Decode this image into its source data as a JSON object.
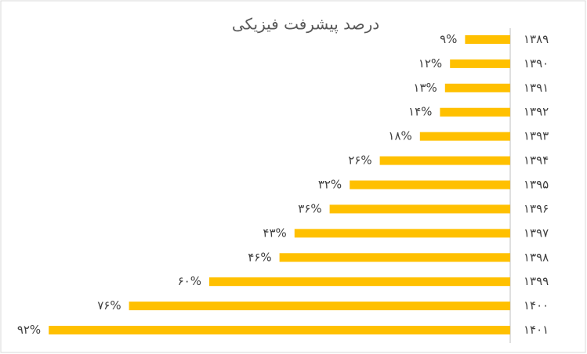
{
  "chart_data": {
    "type": "barh",
    "title": "درصد پیشرفت فیزیکی",
    "categories": [
      "۱۳۸۹",
      "۱۳۹۰",
      "۱۳۹۱",
      "۱۳۹۲",
      "۱۳۹۳",
      "۱۳۹۴",
      "۱۳۹۵",
      "۱۳۹۶",
      "۱۳۹۷",
      "۱۳۹۸",
      "۱۳۹۹",
      "۱۴۰۰",
      "۱۴۰۱"
    ],
    "values": [
      9,
      12,
      13,
      14,
      18,
      26,
      32,
      36,
      43,
      46,
      60,
      76,
      92
    ],
    "value_labels": [
      "۹%",
      "۱۲%",
      "۱۳%",
      "۱۴%",
      "۱۸%",
      "۲۶%",
      "۳۲%",
      "۳۶%",
      "۴۳%",
      "۴۶%",
      "۶۰%",
      "۷۶%",
      "۹۲%"
    ],
    "color": "#ffc000",
    "xlim": [
      0,
      100
    ]
  }
}
